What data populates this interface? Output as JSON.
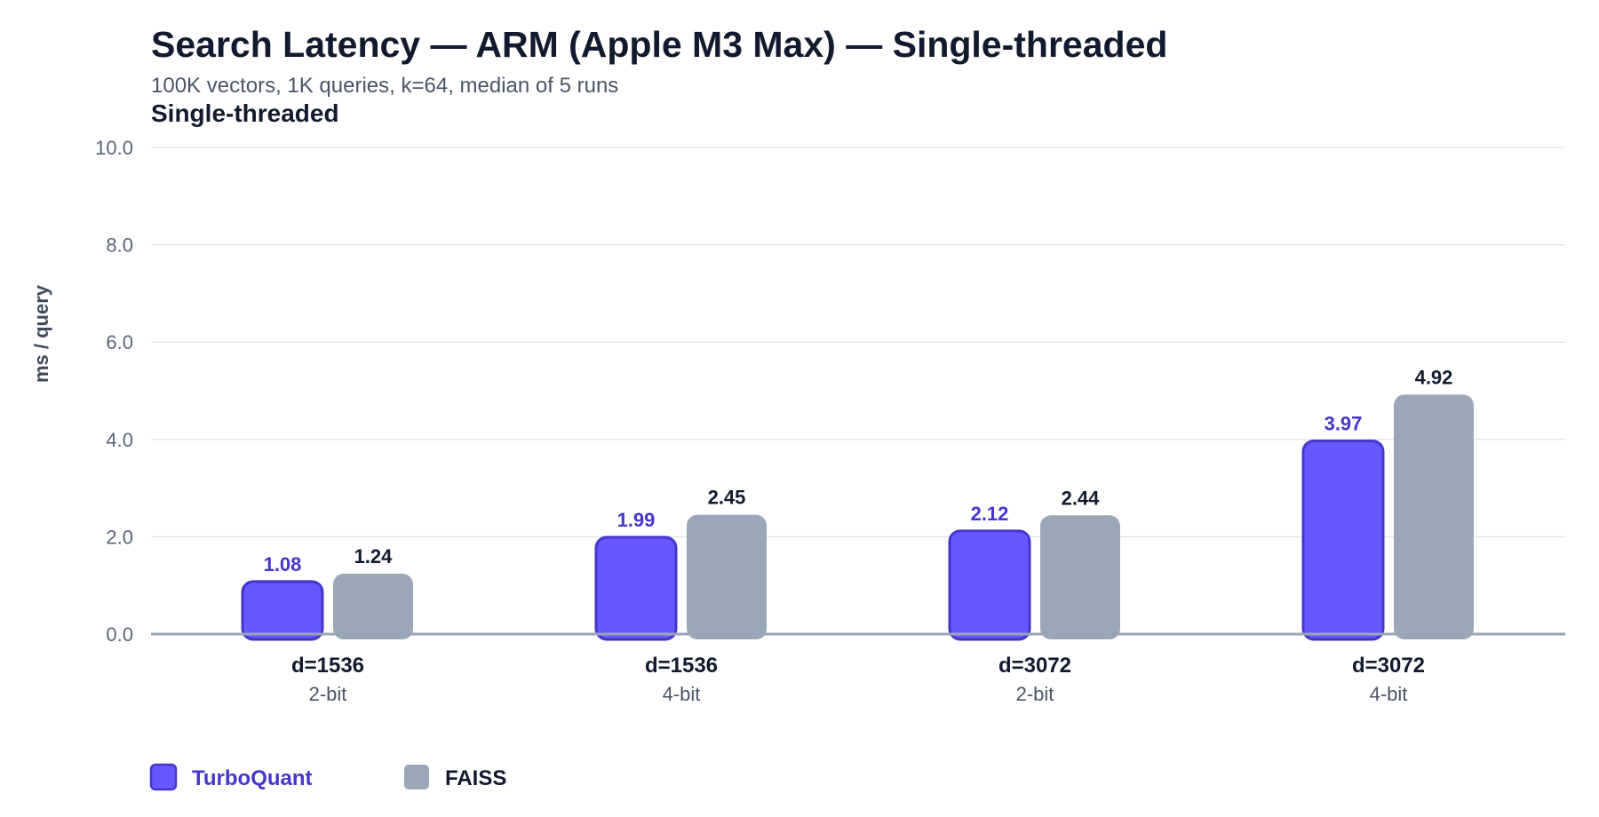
{
  "chart_data": {
    "type": "bar",
    "title": "Search Latency — ARM (Apple M3 Max) — Single-threaded",
    "subtitle": "100K vectors, 1K queries, k=64, median of 5 runs",
    "section_label": "Single-threaded",
    "ylabel": "ms / query",
    "ylim": [
      0,
      10
    ],
    "yticks": [
      "0.0",
      "2.0",
      "4.0",
      "6.0",
      "8.0",
      "10.0"
    ],
    "grid": true,
    "legend_position": "bottom-left",
    "categories": [
      {
        "main": "d=1536",
        "sub": "2-bit"
      },
      {
        "main": "d=1536",
        "sub": "4-bit"
      },
      {
        "main": "d=3072",
        "sub": "2-bit"
      },
      {
        "main": "d=3072",
        "sub": "4-bit"
      }
    ],
    "series": [
      {
        "name": "TurboQuant",
        "color": "#6658ff",
        "stroke": "#4536cc",
        "label_color": "#4536cc",
        "values": [
          1.08,
          1.99,
          2.12,
          3.97
        ],
        "labels": [
          "1.08",
          "1.99",
          "2.12",
          "3.97"
        ]
      },
      {
        "name": "FAISS",
        "color": "#9aa7b6",
        "stroke": "#9aa7b6",
        "label_color": "#111a2e",
        "values": [
          1.24,
          2.45,
          2.44,
          4.92
        ],
        "labels": [
          "1.24",
          "2.45",
          "2.44",
          "4.92"
        ]
      }
    ]
  }
}
